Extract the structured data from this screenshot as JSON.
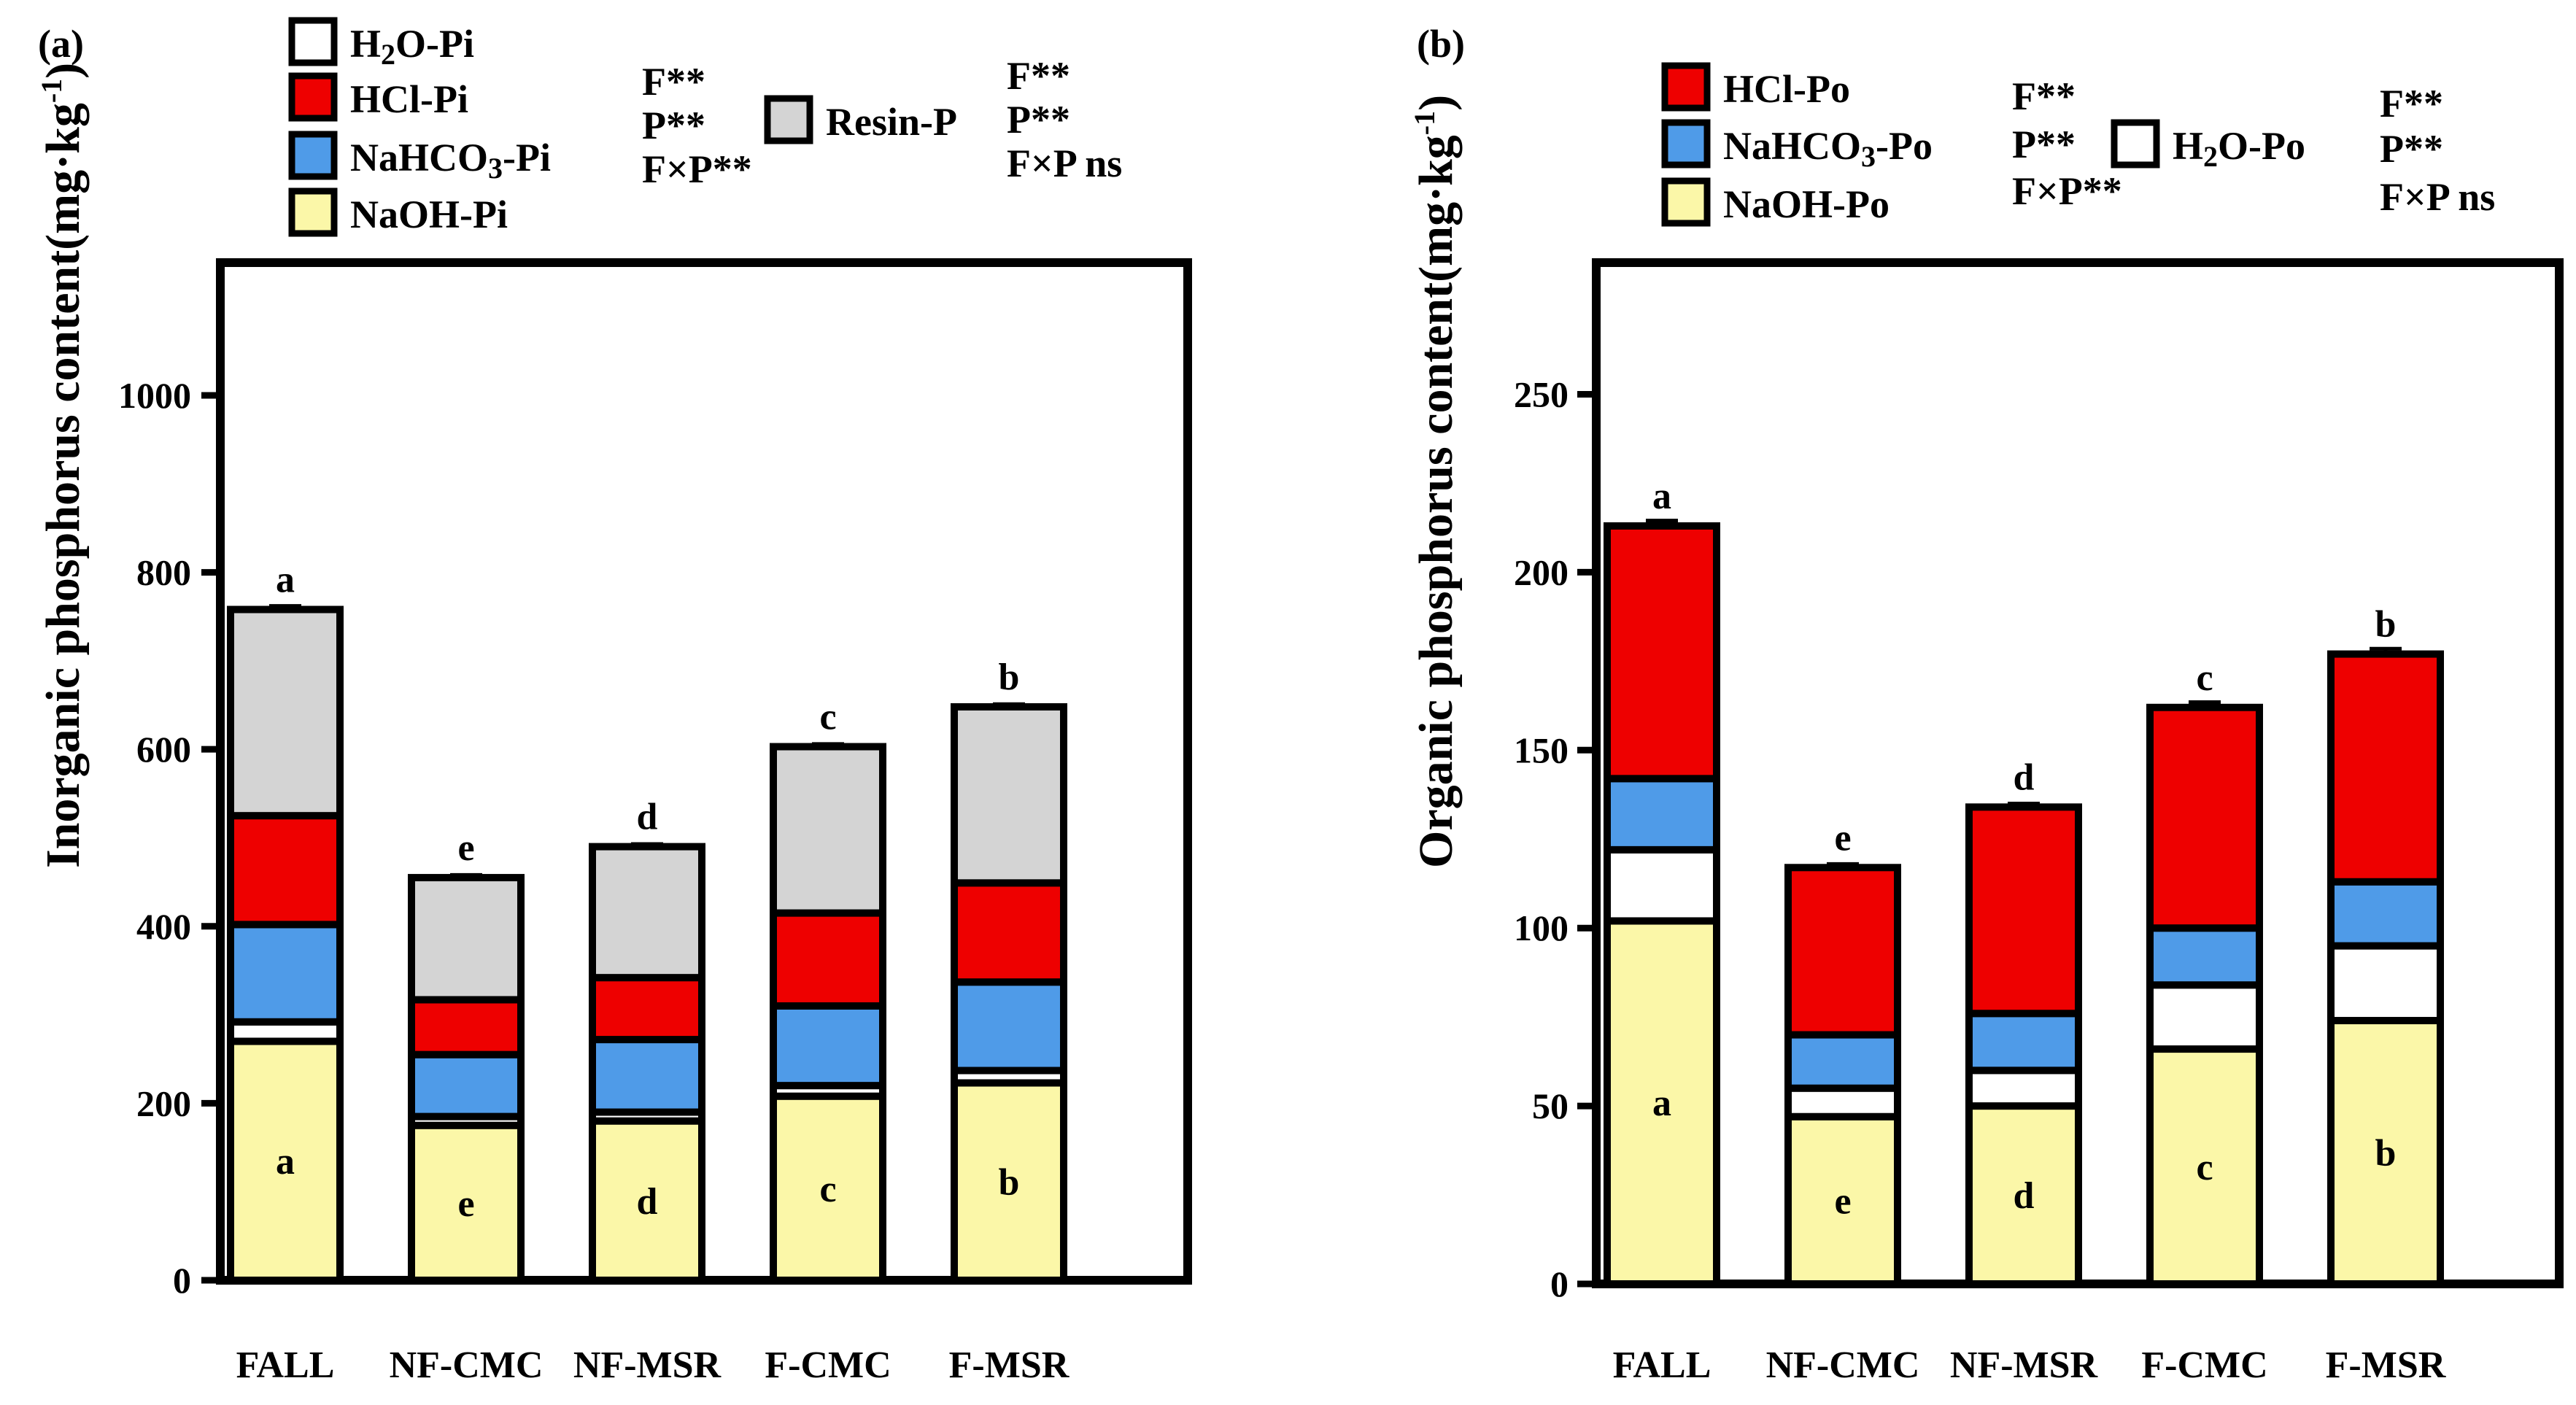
{
  "panels": [
    {
      "label": "(a)",
      "ylabel": "Inorganic phosphorus  content",
      "yunit_main": "(mg·kg",
      "yunit_sup": "-1",
      "yunit_close": ")",
      "legend": [
        {
          "name": "H2O-Pi",
          "prefix": "H",
          "sub": "2",
          "suffix": "O-Pi",
          "color": "#ffffff"
        },
        {
          "name": "HCl-Pi",
          "prefix": "HCl-Pi",
          "sub": "",
          "suffix": "",
          "color": "#ee0000"
        },
        {
          "name": "NaHCO3-Pi",
          "prefix": "NaHCO",
          "sub": "3",
          "suffix": "-Pi",
          "color": "#4f9be8"
        },
        {
          "name": "NaOH-Pi",
          "prefix": "NaOH-Pi",
          "sub": "",
          "suffix": "",
          "color": "#fbf7a8"
        },
        {
          "name": "Resin-P",
          "prefix": "Resin-P",
          "sub": "",
          "suffix": "",
          "color": "#d4d4d4"
        }
      ],
      "stats": [
        {
          "lines": [
            "F**",
            "P**",
            "F×P**"
          ]
        },
        {
          "lines": [
            "F**",
            "P**",
            "F×P ns"
          ]
        }
      ]
    },
    {
      "label": "(b)",
      "ylabel": "Organic phosphorus  content",
      "yunit_main": "(mg·kg",
      "yunit_sup": "-1",
      "yunit_close": ")",
      "legend": [
        {
          "name": "HCl-Po",
          "prefix": "HCl-Po",
          "sub": "",
          "suffix": "",
          "color": "#ee0000"
        },
        {
          "name": "NaHCO3-Po",
          "prefix": "NaHCO",
          "sub": "3",
          "suffix": "-Po",
          "color": "#4f9be8"
        },
        {
          "name": "NaOH-Po",
          "prefix": "NaOH-Po",
          "sub": "",
          "suffix": "",
          "color": "#fbf7a8"
        },
        {
          "name": "H2O-Po",
          "prefix": "H",
          "sub": "2",
          "suffix": "O-Po",
          "color": "#ffffff"
        }
      ],
      "stats": [
        {
          "lines": [
            "F**",
            "P**",
            "F×P**"
          ]
        },
        {
          "lines": [
            "F**",
            "P**",
            "F×P ns"
          ]
        }
      ]
    }
  ],
  "chart_data": [
    {
      "type": "bar",
      "stacked": true,
      "title": "(a)",
      "xlabel": "",
      "ylabel": "Inorganic phosphorus content (mg·kg-1)",
      "categories": [
        "FALL",
        "NF-CMC",
        "NF-MSR",
        "F-CMC",
        "F-MSR"
      ],
      "ylim": [
        0,
        1150
      ],
      "yticks": [
        0,
        200,
        400,
        600,
        800,
        1000
      ],
      "grid": false,
      "legend_position": "top-left",
      "series": [
        {
          "name": "NaOH-Pi",
          "color": "#fbf7a8",
          "values": [
            270,
            175,
            180,
            208,
            223
          ],
          "errors": [
            8,
            6,
            6,
            6,
            6
          ],
          "letters": [
            "a",
            "e",
            "d",
            "c",
            "b"
          ]
        },
        {
          "name": "H2O-Pi",
          "color": "#ffffff",
          "values": [
            22,
            10,
            10,
            12,
            14
          ],
          "errors": [
            4,
            3,
            3,
            3,
            3
          ],
          "letters": [
            "",
            "",
            "",
            "",
            ""
          ]
        },
        {
          "name": "NaHCO3-Pi",
          "color": "#4f9be8",
          "values": [
            110,
            70,
            82,
            90,
            100
          ],
          "errors": [
            5,
            4,
            4,
            4,
            4
          ],
          "letters": [
            "a",
            "e",
            "d",
            "c",
            "b"
          ]
        },
        {
          "name": "HCl-Pi",
          "color": "#ee0000",
          "values": [
            123,
            62,
            70,
            105,
            112
          ],
          "errors": [
            5,
            3,
            3,
            5,
            5
          ],
          "letters": [
            "a",
            "e",
            "d",
            "c",
            "b"
          ]
        },
        {
          "name": "Resin-P",
          "color": "#d4d4d4",
          "values": [
            233,
            138,
            148,
            188,
            199
          ],
          "errors": [
            4,
            3,
            3,
            3,
            3
          ],
          "letters": [
            "a",
            "e",
            "d",
            "c",
            "b"
          ]
        }
      ]
    },
    {
      "type": "bar",
      "stacked": true,
      "title": "(b)",
      "xlabel": "",
      "ylabel": "Organic phosphorus content (mg·kg-1)",
      "categories": [
        "FALL",
        "NF-CMC",
        "NF-MSR",
        "F-CMC",
        "F-MSR"
      ],
      "ylim": [
        0,
        287
      ],
      "yticks": [
        0,
        50,
        100,
        150,
        200,
        250
      ],
      "grid": false,
      "legend_position": "top-left",
      "series": [
        {
          "name": "NaOH-Po",
          "color": "#fbf7a8",
          "values": [
            102,
            47,
            50,
            66,
            74
          ],
          "errors": [
            3,
            1.5,
            1.5,
            2,
            2
          ],
          "letters": [
            "a",
            "e",
            "d",
            "c",
            "b"
          ]
        },
        {
          "name": "H2O-Po",
          "color": "#ffffff",
          "values": [
            20,
            8,
            10,
            18,
            21
          ],
          "errors": [
            1.5,
            1,
            1,
            1.5,
            1.5
          ],
          "letters": [
            "",
            "",
            "",
            "",
            ""
          ]
        },
        {
          "name": "NaHCO3-Po",
          "color": "#4f9be8",
          "values": [
            20,
            15,
            16,
            16,
            18
          ],
          "errors": [
            1.5,
            1,
            1,
            1,
            1.5
          ],
          "letters": [
            "a",
            "e",
            "d",
            "c",
            "b"
          ]
        },
        {
          "name": "HCl-Po",
          "color": "#ee0000",
          "values": [
            71,
            47,
            58,
            62,
            64
          ],
          "errors": [
            1.5,
            1,
            1,
            1.5,
            1.5
          ],
          "letters": [
            "a",
            "e",
            "d",
            "c",
            "b"
          ]
        }
      ]
    }
  ]
}
